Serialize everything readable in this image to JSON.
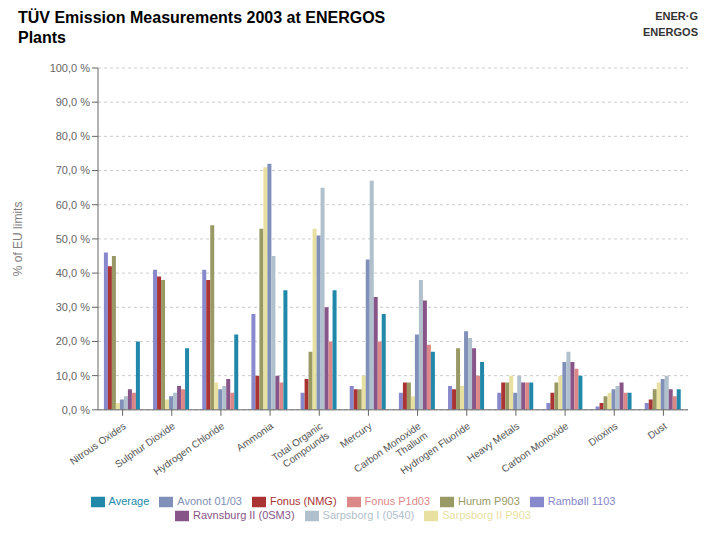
{
  "chart_data": {
    "type": "bar",
    "title": "TÜV Emission Measurements 2003 at ENERGOS\nPlants",
    "annotations": [
      "ENER·G",
      "ENERGOS"
    ],
    "y_label": "% of EU limits",
    "categories": [
      "Nitrous Oxides",
      "Sulphur Dioxide",
      "Hydrogen Chloride",
      "Ammonia",
      "Total Organic\nCompounds",
      "Mercury",
      "Carbon Monoxide\nThalium",
      "Hydrogen Fluoride",
      "Heavy Metals",
      "Carbon Monoxide",
      "Dioxins",
      "Dust"
    ],
    "series": [
      {
        "name": "Rambøll 1103",
        "color": "#8888CC",
        "values": [
          46,
          41,
          41,
          28,
          5,
          7,
          5,
          7,
          5,
          2,
          1,
          2
        ]
      },
      {
        "name": "Fonus (NMG)",
        "color": "#AA3333",
        "values": [
          42,
          39,
          38,
          10,
          9,
          6,
          8,
          6,
          8,
          5,
          2,
          3
        ]
      },
      {
        "name": "Hurum P903",
        "color": "#999966",
        "values": [
          45,
          38,
          54,
          53,
          17,
          6,
          8,
          18,
          8,
          8,
          4,
          6
        ]
      },
      {
        "name": "Sarpsborg II P903",
        "color": "#E8E0A0",
        "values": [
          2,
          3,
          8,
          71,
          53,
          10,
          4,
          7,
          10,
          10,
          5,
          8
        ]
      },
      {
        "name": "Avonot 01/03",
        "color": "#8090B8",
        "values": [
          3,
          4,
          6,
          72,
          51,
          44,
          22,
          23,
          5,
          14,
          6,
          9
        ]
      },
      {
        "name": "Sarpsborg I (0540)",
        "color": "#B0C0CC",
        "values": [
          4,
          5,
          7,
          45,
          65,
          67,
          38,
          21,
          10,
          17,
          7,
          10
        ]
      },
      {
        "name": "Ravnsburg II (0SM3)",
        "color": "#885588",
        "values": [
          6,
          7,
          9,
          10,
          30,
          33,
          32,
          18,
          8,
          14,
          8,
          6
        ]
      },
      {
        "name": "Fonus P1d03",
        "color": "#DD8888",
        "values": [
          5,
          6,
          5,
          8,
          20,
          20,
          19,
          10,
          8,
          12,
          5,
          4
        ]
      },
      {
        "name": "Average",
        "color": "#2288AA",
        "values": [
          20,
          18,
          22,
          35,
          35,
          28,
          17,
          14,
          8,
          10,
          5,
          6
        ]
      }
    ],
    "ylim": [
      0,
      100
    ],
    "yticks": [
      {
        "value": 0,
        "label": "0,0 %"
      },
      {
        "value": 10,
        "label": "10,0 %"
      },
      {
        "value": 20,
        "label": "20,0 %"
      },
      {
        "value": 30,
        "label": "30,0 %"
      },
      {
        "value": 40,
        "label": "40,0 %"
      },
      {
        "value": 50,
        "label": "50,0 %"
      },
      {
        "value": 60,
        "label": "60,0 %"
      },
      {
        "value": 70,
        "label": "70,0 %"
      },
      {
        "value": 80,
        "label": "80,0 %"
      },
      {
        "value": 90,
        "label": "90,0 %"
      },
      {
        "value": 100,
        "label": "100,0 %"
      }
    ],
    "grid": true,
    "legend": "bottom"
  }
}
